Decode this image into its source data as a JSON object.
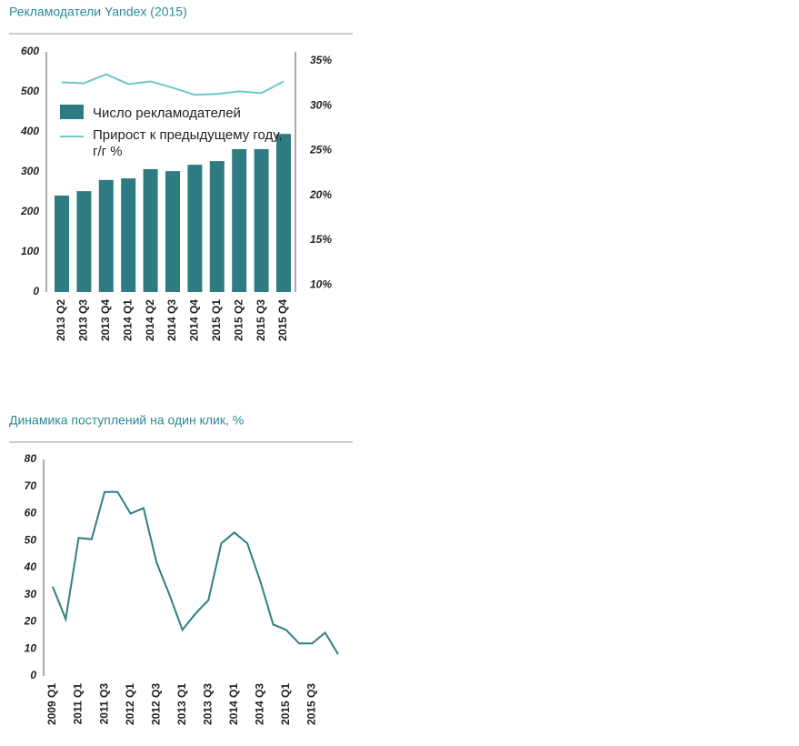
{
  "chart_data": [
    {
      "type": "bar-line",
      "title": "Рекламодатели Yandex (2015)",
      "categories": [
        "2013 Q2",
        "2013 Q3",
        "2013 Q4",
        "2014 Q1",
        "2014 Q2",
        "2014 Q3",
        "2014 Q4",
        "2015 Q1",
        "2015 Q2",
        "2015 Q3",
        "2015 Q4"
      ],
      "series": [
        {
          "name": "Число рекламодателей",
          "color": "#2e7c81",
          "values": [
            241,
            252,
            280,
            284,
            307,
            302,
            318,
            327,
            357,
            357,
            395
          ]
        },
        {
          "name": "Прирост к предыдущему году, г/г %",
          "color": "#6ec6cf",
          "axis": "y2",
          "values": [
            32.6,
            32.5,
            33.5,
            32.4,
            32.7,
            32.0,
            31.2,
            31.3,
            31.6,
            31.4,
            32.7
          ]
        }
      ],
      "ylim": [
        0,
        600
      ],
      "yticks": [
        0,
        100,
        200,
        300,
        400,
        500,
        600
      ],
      "y2lim": [
        9.2,
        36
      ],
      "y2ticks": [
        {
          "value": 10,
          "label": "10%"
        },
        {
          "value": 15,
          "label": "15%"
        },
        {
          "value": 20,
          "label": "20%"
        },
        {
          "value": 25,
          "label": "25%"
        },
        {
          "value": 30,
          "label": "30%"
        },
        {
          "value": 35,
          "label": "35%"
        }
      ],
      "legend": "upper left"
    },
    {
      "type": "line",
      "title": "Динамика поступлений на один клик, %",
      "categories": [
        "2009 Q1",
        null,
        "2011 Q1",
        null,
        "2011 Q3",
        null,
        "2012 Q1",
        null,
        "2012 Q3",
        null,
        "2013 Q1",
        null,
        "2013 Q3",
        null,
        "2014 Q1",
        null,
        "2014 Q3",
        null,
        "2015 Q1",
        null,
        "2015 Q3",
        null,
        null
      ],
      "series": [
        {
          "color": "#2f7f86",
          "values": [
            33,
            21,
            51,
            50.5,
            68,
            68,
            60,
            62,
            42,
            30,
            17,
            23,
            28,
            49,
            53,
            49,
            35,
            19,
            17,
            12,
            12,
            16,
            8
          ]
        }
      ],
      "ylim": [
        0,
        80
      ],
      "yticks": [
        0,
        10,
        20,
        30,
        40,
        50,
        60,
        70,
        80
      ]
    }
  ]
}
